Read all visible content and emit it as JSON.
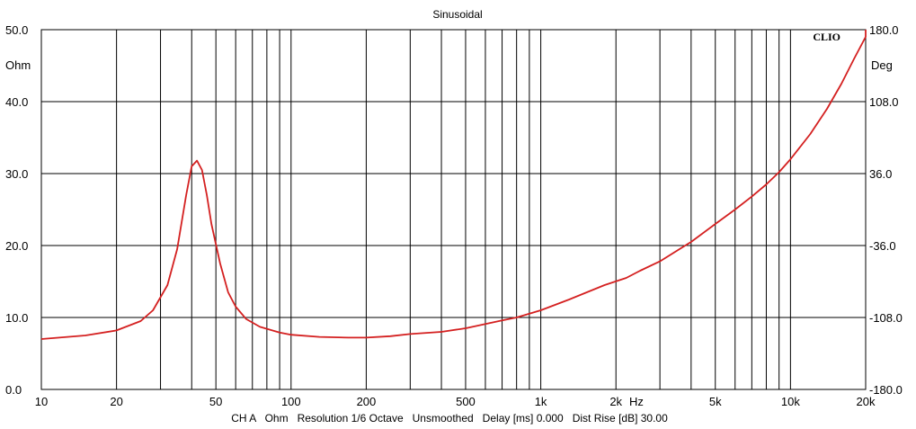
{
  "chart_data": {
    "type": "line",
    "title": "Sinusoidal",
    "brand": "CLIO",
    "x_scale": "log",
    "xlim": [
      10,
      20000
    ],
    "x_ticks": [
      {
        "value": 10,
        "label": "10"
      },
      {
        "value": 20,
        "label": "20"
      },
      {
        "value": 50,
        "label": "50"
      },
      {
        "value": 100,
        "label": "100"
      },
      {
        "value": 200,
        "label": "200"
      },
      {
        "value": 500,
        "label": "500"
      },
      {
        "value": 1000,
        "label": "1k"
      },
      {
        "value": 2000,
        "label": "2k"
      },
      {
        "value": 5000,
        "label": "5k"
      },
      {
        "value": 10000,
        "label": "10k"
      },
      {
        "value": 20000,
        "label": "20k"
      }
    ],
    "x_unit": "Hz",
    "ylim_left": [
      0,
      50
    ],
    "y_left_unit": "Ohm",
    "y_left_ticks": [
      "0.0",
      "10.0",
      "20.0",
      "30.0",
      "40.0",
      "50.0"
    ],
    "ylim_right": [
      -180,
      180
    ],
    "y_right_unit": "Deg",
    "y_right_ticks": [
      "-180.0",
      "-108.0",
      "-36.0",
      "36.0",
      "108.0",
      "180.0"
    ],
    "grid": true,
    "footer": "CH A   Ohm   Resolution 1/6 Octave   Unsmoothed   Delay [ms] 0.000   Dist Rise [dB] 30.00",
    "series": [
      {
        "color": "#d42020",
        "x": [
          10,
          15,
          20,
          25,
          28,
          32,
          35,
          38,
          40,
          42,
          44,
          46,
          48,
          52,
          56,
          60,
          66,
          75,
          90,
          100,
          130,
          170,
          200,
          250,
          300,
          400,
          500,
          600,
          700,
          800,
          1000,
          1300,
          1800,
          2200,
          2500,
          3000,
          4000,
          5000,
          6000,
          7000,
          8000,
          9000,
          10000,
          12000,
          14000,
          16000,
          18000,
          20000,
          21000
        ],
        "y": [
          7.0,
          7.5,
          8.2,
          9.5,
          11.0,
          14.5,
          19.5,
          27.0,
          31.0,
          31.8,
          30.5,
          27.0,
          23.0,
          17.5,
          13.5,
          11.5,
          9.8,
          8.7,
          7.9,
          7.6,
          7.3,
          7.2,
          7.2,
          7.4,
          7.7,
          8.0,
          8.5,
          9.1,
          9.6,
          10.0,
          11.0,
          12.5,
          14.5,
          15.5,
          16.5,
          17.8,
          20.5,
          23.0,
          25.0,
          26.8,
          28.5,
          30.2,
          32.0,
          35.5,
          39.0,
          42.5,
          46.0,
          49.0,
          50.0
        ]
      }
    ]
  }
}
